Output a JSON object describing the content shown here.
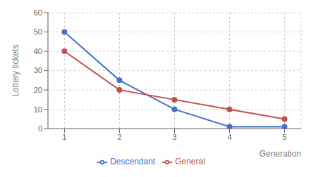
{
  "chart_data": {
    "type": "line",
    "xlabel": "Generation",
    "ylabel": "Lottery tickets",
    "x": [
      1,
      2,
      3,
      4,
      5
    ],
    "series": [
      {
        "name": "Descendant",
        "color": "#4472C4",
        "values": [
          50,
          25,
          10,
          1,
          1
        ]
      },
      {
        "name": "General",
        "color": "#C0504D",
        "values": [
          40,
          20,
          15,
          10,
          5
        ]
      }
    ],
    "xlim": [
      0.7,
      5.3
    ],
    "xticks": [
      1,
      2,
      3,
      4,
      5
    ],
    "ylim": [
      0,
      60
    ],
    "yticks": [
      0,
      10,
      20,
      30,
      40,
      50,
      60
    ],
    "grid": true,
    "legend": "bottom",
    "marker": "circle"
  }
}
